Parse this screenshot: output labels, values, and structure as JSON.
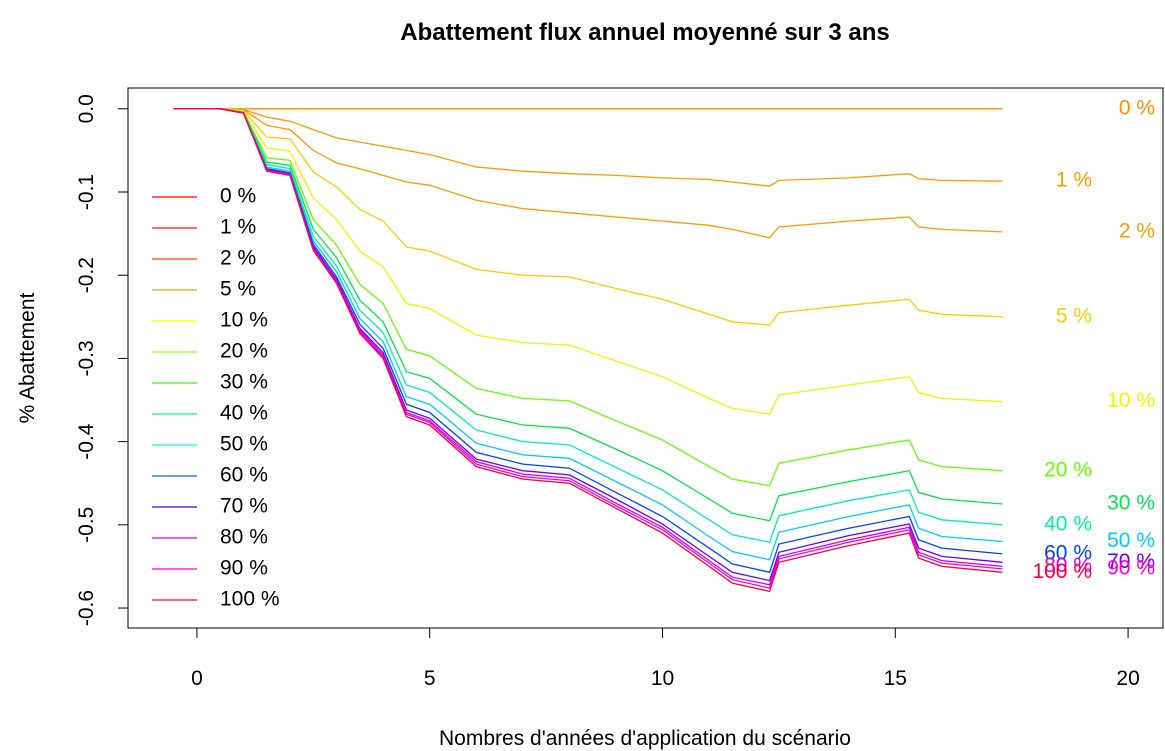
{
  "chart_data": {
    "type": "line",
    "title": "Abattement flux annuel moyenné sur 3 ans",
    "x_label": "Nombres d'années d'application du scénario",
    "y_label": "% Abattement",
    "xlim": [
      -1.48,
      20.75
    ],
    "ylim": [
      -0.624,
      0.025
    ],
    "xticks": [
      0,
      5,
      10,
      15,
      20
    ],
    "yticks": [
      {
        "value": 0,
        "label": "0.0"
      },
      -0.1,
      -0.2,
      -0.3,
      -0.4,
      -0.5,
      -0.6
    ],
    "x": [
      -0.5,
      0.5,
      1,
      1.5,
      2,
      2.5,
      3,
      3.5,
      4,
      4.5,
      5,
      6,
      7,
      8,
      9,
      10,
      11,
      11.5,
      12.3,
      12.5,
      14,
      15.3,
      15.5,
      16,
      17.3
    ],
    "series": [
      {
        "name": "0 %",
        "color": "#ff8c00",
        "legend_color": "#ff0000",
        "values": [
          0,
          0,
          0,
          0,
          0,
          0,
          0,
          0,
          0,
          0,
          0,
          0,
          0,
          0,
          0,
          0,
          0,
          0,
          0,
          0,
          0,
          0,
          0,
          0,
          0
        ]
      },
      {
        "name": "1 %",
        "color": "#ff9900",
        "legend_color": "#ff1a00",
        "values": [
          0,
          0,
          -0.001,
          -0.01,
          -0.015,
          -0.025,
          -0.035,
          -0.04,
          -0.045,
          -0.05,
          -0.055,
          -0.07,
          -0.075,
          -0.078,
          -0.08,
          -0.083,
          -0.085,
          -0.088,
          -0.093,
          -0.086,
          -0.083,
          -0.078,
          -0.084,
          -0.086,
          -0.087
        ]
      },
      {
        "name": "2 %",
        "color": "#ff9900",
        "legend_color": "#ff4000",
        "values": [
          0,
          0,
          -0.001,
          -0.02,
          -0.025,
          -0.05,
          -0.065,
          -0.072,
          -0.08,
          -0.088,
          -0.092,
          -0.11,
          -0.12,
          -0.125,
          -0.13,
          -0.135,
          -0.14,
          -0.145,
          -0.155,
          -0.142,
          -0.135,
          -0.13,
          -0.142,
          -0.145,
          -0.148
        ]
      },
      {
        "name": "5 %",
        "color": "#ffcc00",
        "legend_color": "#ff9900",
        "values": [
          0,
          0,
          -0.002,
          -0.034,
          -0.036,
          -0.076,
          -0.094,
          -0.121,
          -0.135,
          -0.166,
          -0.171,
          -0.193,
          -0.2,
          -0.202,
          -0.216,
          -0.229,
          -0.247,
          -0.256,
          -0.26,
          -0.245,
          -0.236,
          -0.229,
          -0.242,
          -0.247,
          -0.25
        ]
      },
      {
        "name": "10 %",
        "color": "#f2f200",
        "legend_color": "#ffff00",
        "values": [
          0,
          0,
          -0.003,
          -0.047,
          -0.051,
          -0.107,
          -0.133,
          -0.171,
          -0.19,
          -0.234,
          -0.24,
          -0.272,
          -0.281,
          -0.284,
          -0.303,
          -0.322,
          -0.348,
          -0.36,
          -0.367,
          -0.344,
          -0.332,
          -0.322,
          -0.341,
          -0.348,
          -0.352
        ]
      },
      {
        "name": "20 %",
        "color": "#66ff00",
        "legend_color": "#99ff00",
        "values": [
          0,
          0,
          -0.004,
          -0.059,
          -0.062,
          -0.133,
          -0.164,
          -0.211,
          -0.234,
          -0.289,
          -0.297,
          -0.336,
          -0.348,
          -0.351,
          -0.375,
          -0.398,
          -0.43,
          -0.445,
          -0.453,
          -0.426,
          -0.41,
          -0.398,
          -0.422,
          -0.43,
          -0.435
        ]
      },
      {
        "name": "30 %",
        "color": "#00e64d",
        "legend_color": "#33ff00",
        "values": [
          0,
          0,
          -0.004,
          -0.064,
          -0.068,
          -0.145,
          -0.179,
          -0.23,
          -0.256,
          -0.316,
          -0.324,
          -0.367,
          -0.38,
          -0.384,
          -0.409,
          -0.435,
          -0.469,
          -0.486,
          -0.495,
          -0.465,
          -0.448,
          -0.435,
          -0.461,
          -0.469,
          -0.475
        ]
      },
      {
        "name": "40 %",
        "color": "#00f2aa",
        "legend_color": "#00ff66",
        "values": [
          0,
          0,
          -0.004,
          -0.067,
          -0.072,
          -0.153,
          -0.189,
          -0.242,
          -0.269,
          -0.332,
          -0.341,
          -0.386,
          -0.4,
          -0.404,
          -0.431,
          -0.458,
          -0.494,
          -0.512,
          -0.521,
          -0.489,
          -0.471,
          -0.458,
          -0.485,
          -0.494,
          -0.5
        ]
      },
      {
        "name": "50 %",
        "color": "#00ccff",
        "legend_color": "#00ffcc",
        "values": [
          0,
          0,
          -0.005,
          -0.07,
          -0.075,
          -0.159,
          -0.196,
          -0.252,
          -0.28,
          -0.346,
          -0.355,
          -0.402,
          -0.416,
          -0.42,
          -0.448,
          -0.476,
          -0.514,
          -0.532,
          -0.542,
          -0.509,
          -0.49,
          -0.476,
          -0.504,
          -0.514,
          -0.52
        ]
      },
      {
        "name": "60 %",
        "color": "#0044ff",
        "legend_color": "#0066ff",
        "values": [
          0,
          0,
          -0.005,
          -0.072,
          -0.077,
          -0.163,
          -0.202,
          -0.259,
          -0.288,
          -0.355,
          -0.365,
          -0.413,
          -0.427,
          -0.432,
          -0.461,
          -0.49,
          -0.528,
          -0.547,
          -0.557,
          -0.523,
          -0.504,
          -0.49,
          -0.518,
          -0.528,
          -0.535
        ]
      },
      {
        "name": "70 %",
        "color": "#6600ff",
        "legend_color": "#3300ff",
        "values": [
          0,
          0,
          -0.005,
          -0.073,
          -0.078,
          -0.166,
          -0.205,
          -0.264,
          -0.293,
          -0.362,
          -0.372,
          -0.421,
          -0.435,
          -0.44,
          -0.469,
          -0.499,
          -0.538,
          -0.557,
          -0.567,
          -0.533,
          -0.513,
          -0.499,
          -0.528,
          -0.538,
          -0.545
        ]
      },
      {
        "name": "80 %",
        "color": "#cc00ff",
        "legend_color": "#cc00ff",
        "values": [
          0,
          0,
          -0.005,
          -0.074,
          -0.079,
          -0.168,
          -0.207,
          -0.266,
          -0.296,
          -0.365,
          -0.375,
          -0.424,
          -0.439,
          -0.444,
          -0.474,
          -0.503,
          -0.543,
          -0.563,
          -0.572,
          -0.538,
          -0.518,
          -0.503,
          -0.533,
          -0.543,
          -0.55
        ]
      },
      {
        "name": "90 %",
        "color": "#ff00cc",
        "legend_color": "#ff00cc",
        "values": [
          0,
          0,
          -0.005,
          -0.074,
          -0.079,
          -0.169,
          -0.209,
          -0.268,
          -0.298,
          -0.367,
          -0.377,
          -0.427,
          -0.442,
          -0.447,
          -0.477,
          -0.506,
          -0.546,
          -0.566,
          -0.576,
          -0.541,
          -0.521,
          -0.506,
          -0.536,
          -0.546,
          -0.553
        ]
      },
      {
        "name": "100 %",
        "color": "#ff0033",
        "legend_color": "#ff0033",
        "values": [
          0,
          0,
          -0.005,
          -0.075,
          -0.08,
          -0.17,
          -0.21,
          -0.27,
          -0.3,
          -0.37,
          -0.38,
          -0.43,
          -0.445,
          -0.45,
          -0.48,
          -0.51,
          -0.55,
          -0.57,
          -0.58,
          -0.545,
          -0.525,
          -0.51,
          -0.54,
          -0.55,
          -0.557
        ]
      }
    ]
  }
}
